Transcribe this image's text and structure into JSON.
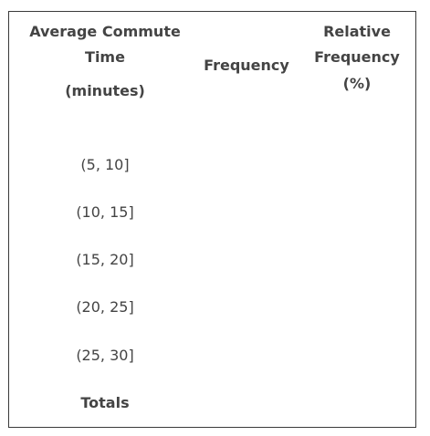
{
  "table": {
    "headers": {
      "interval": [
        "Average Commute",
        "Time",
        "(minutes)"
      ],
      "frequency": "Frequency",
      "relative": [
        "Relative",
        "Frequency",
        "(%)"
      ]
    },
    "rows": [
      {
        "interval": "(5, 10]",
        "frequency": "",
        "relative": ""
      },
      {
        "interval": "(10, 15]",
        "frequency": "",
        "relative": ""
      },
      {
        "interval": "(15, 20]",
        "frequency": "",
        "relative": ""
      },
      {
        "interval": "(20, 25]",
        "frequency": "",
        "relative": ""
      },
      {
        "interval": "(25, 30]",
        "frequency": "",
        "relative": ""
      }
    ],
    "totals_label": "Totals"
  }
}
